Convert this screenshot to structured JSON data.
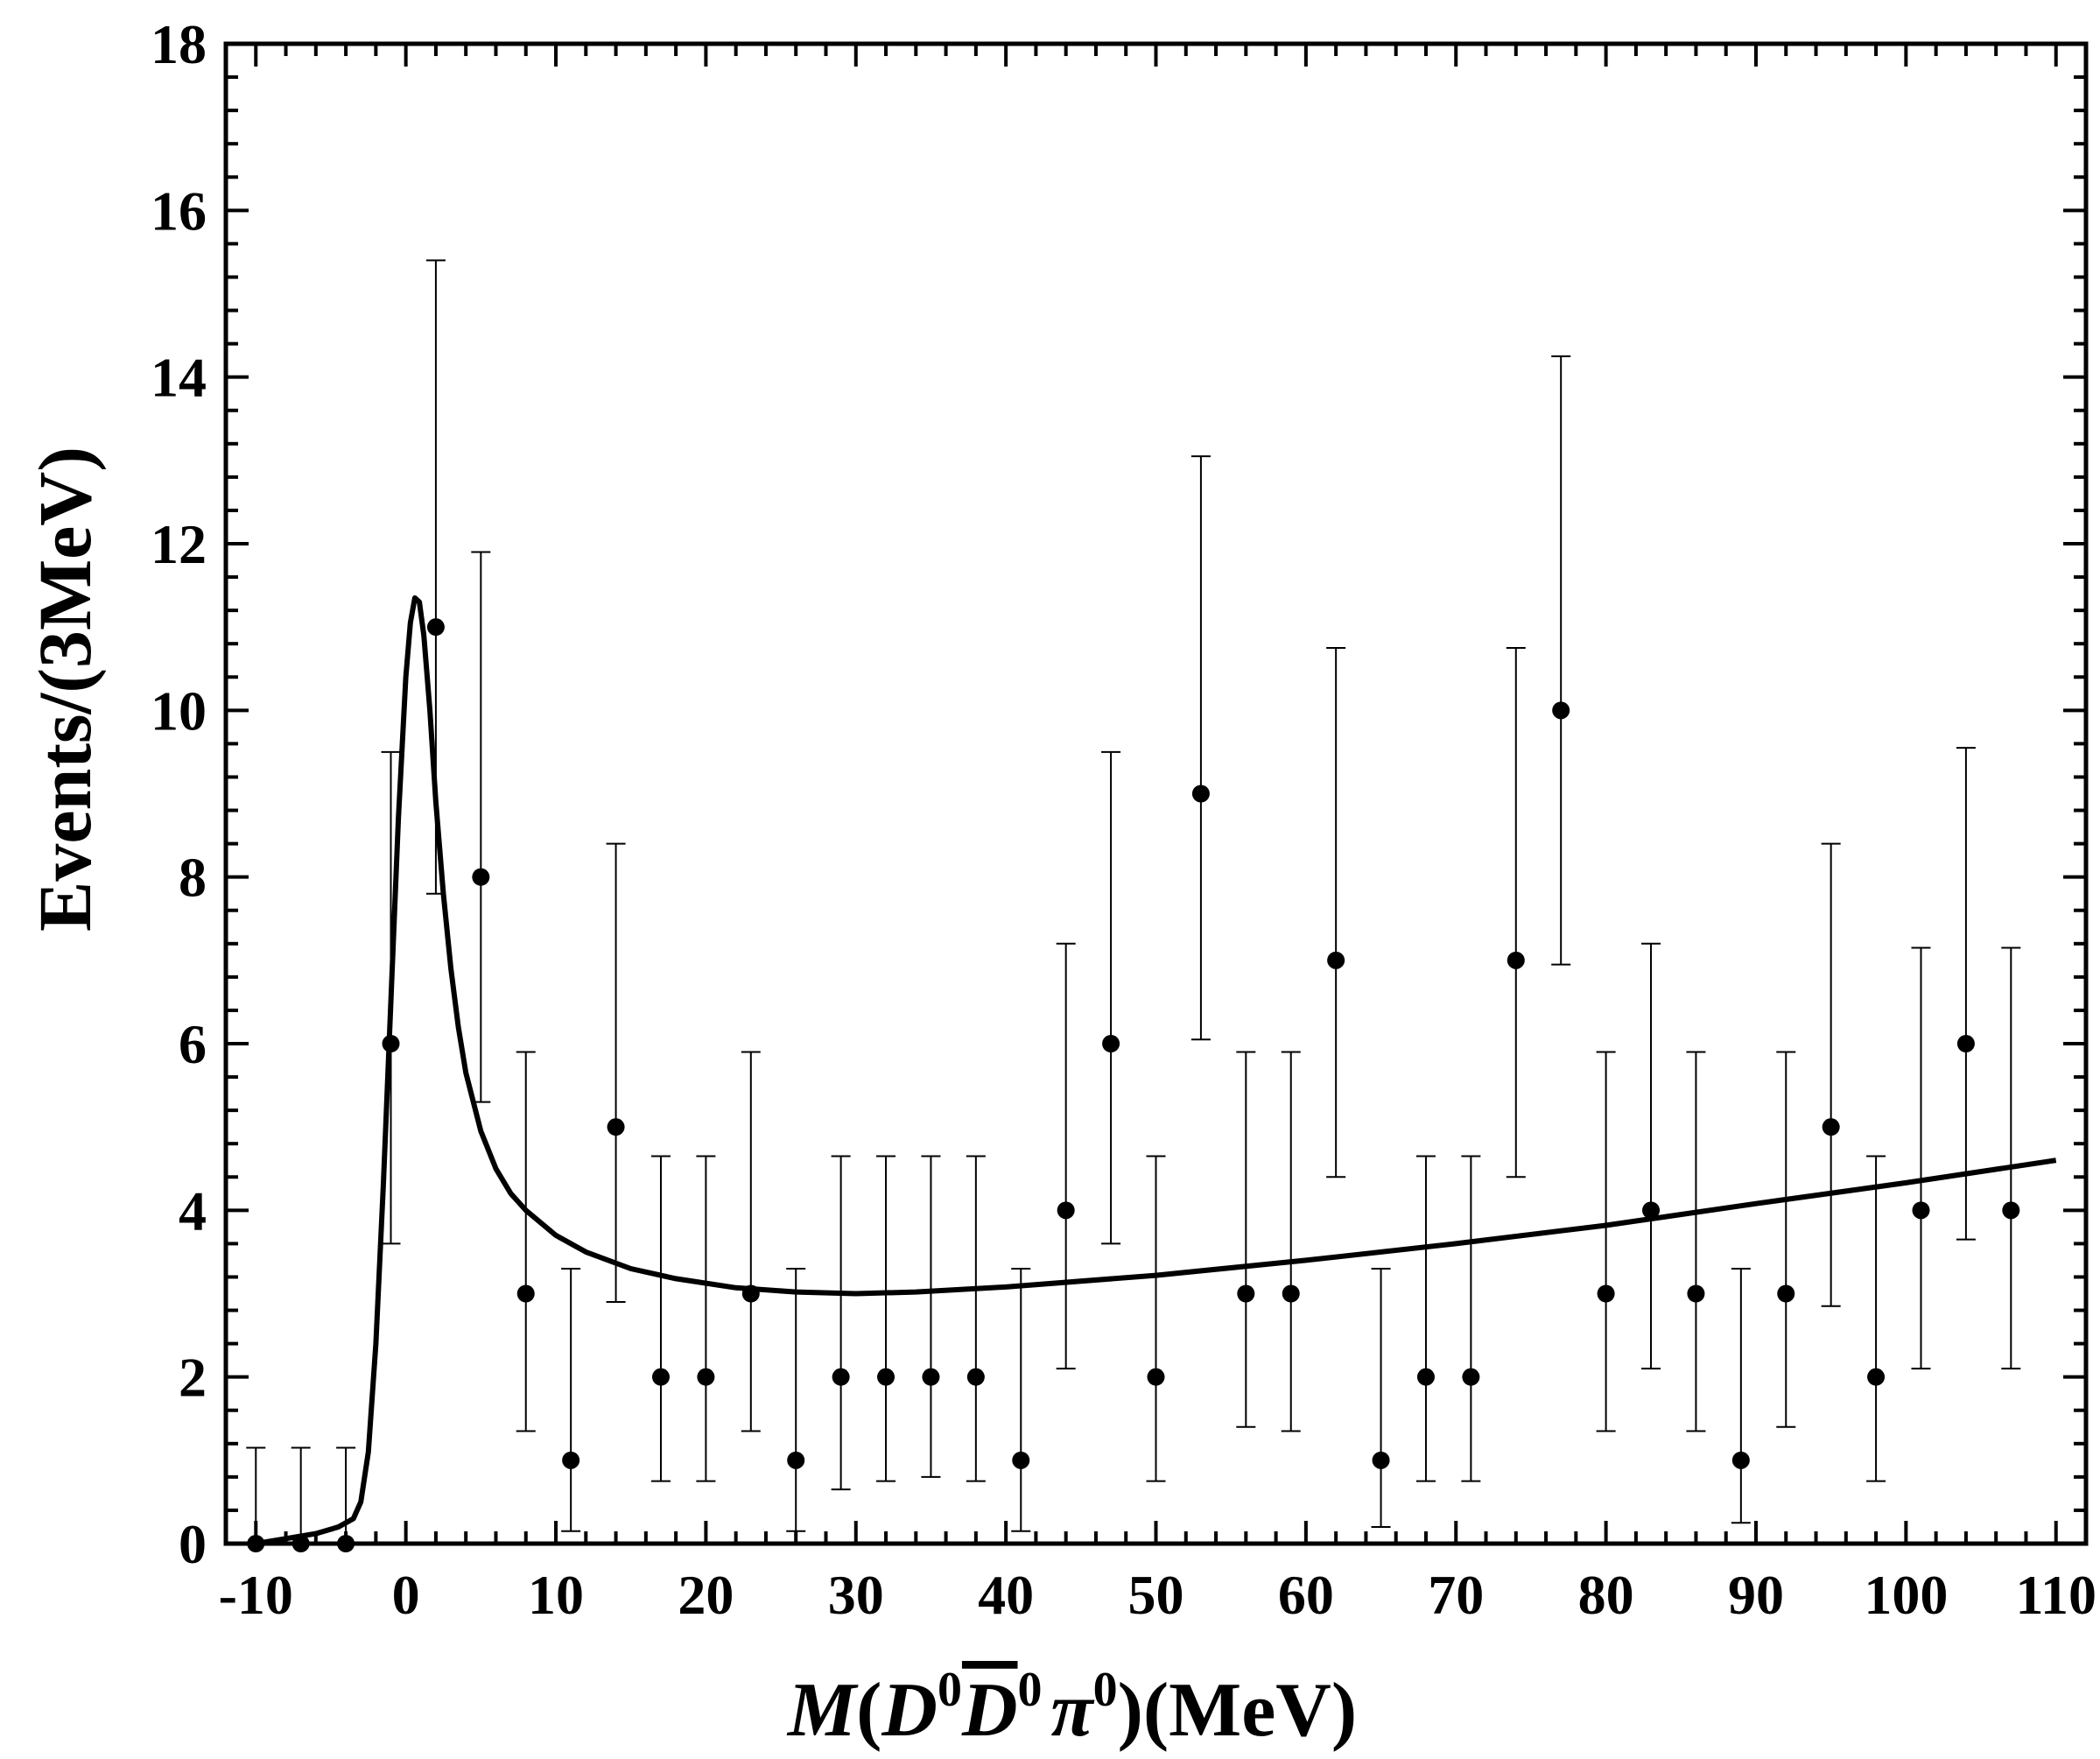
{
  "chart_data": {
    "type": "scatter",
    "title": "",
    "xlabel": {
      "prefix": "M",
      "open": "(",
      "d1": "D",
      "d1_sup": "0",
      "d2": "D",
      "d2_sup": "0",
      "pi": "π",
      "pi_sup": "0",
      "close": ")",
      "unit": "(MeV)"
    },
    "ylabel": "Events/(3MeV)",
    "xlim": [
      -12,
      112
    ],
    "ylim": [
      0,
      18
    ],
    "x_ticks": [
      -10,
      0,
      10,
      20,
      30,
      40,
      50,
      60,
      70,
      80,
      90,
      100,
      110
    ],
    "y_ticks": [
      0,
      2,
      4,
      6,
      8,
      10,
      12,
      14,
      16,
      18
    ],
    "grid": false,
    "legend": "none",
    "series": [
      {
        "type": "points_with_errors",
        "color": "#000000",
        "points": [
          {
            "x": -10,
            "y": 0,
            "lo": 0,
            "hi": 1.15
          },
          {
            "x": -7,
            "y": 0,
            "lo": 0,
            "hi": 1.15
          },
          {
            "x": -4,
            "y": 0,
            "lo": 0,
            "hi": 1.15
          },
          {
            "x": -1,
            "y": 6,
            "lo": 3.6,
            "hi": 9.5
          },
          {
            "x": 2,
            "y": 11,
            "lo": 7.8,
            "hi": 15.4
          },
          {
            "x": 5,
            "y": 8,
            "lo": 5.3,
            "hi": 11.9
          },
          {
            "x": 8,
            "y": 3,
            "lo": 1.35,
            "hi": 5.9
          },
          {
            "x": 11,
            "y": 1,
            "lo": 0.15,
            "hi": 3.3
          },
          {
            "x": 14,
            "y": 5,
            "lo": 2.9,
            "hi": 8.4
          },
          {
            "x": 17,
            "y": 2,
            "lo": 0.75,
            "hi": 4.65
          },
          {
            "x": 20,
            "y": 2,
            "lo": 0.75,
            "hi": 4.65
          },
          {
            "x": 23,
            "y": 3,
            "lo": 1.35,
            "hi": 5.9
          },
          {
            "x": 26,
            "y": 1,
            "lo": 0.15,
            "hi": 3.3
          },
          {
            "x": 29,
            "y": 2,
            "lo": 0.65,
            "hi": 4.65
          },
          {
            "x": 32,
            "y": 2,
            "lo": 0.75,
            "hi": 4.65
          },
          {
            "x": 35,
            "y": 2,
            "lo": 0.8,
            "hi": 4.65
          },
          {
            "x": 38,
            "y": 2,
            "lo": 0.75,
            "hi": 4.65
          },
          {
            "x": 41,
            "y": 1,
            "lo": 0.15,
            "hi": 3.3
          },
          {
            "x": 44,
            "y": 4,
            "lo": 2.1,
            "hi": 7.2
          },
          {
            "x": 47,
            "y": 6,
            "lo": 3.6,
            "hi": 9.5
          },
          {
            "x": 50,
            "y": 2,
            "lo": 0.75,
            "hi": 4.65
          },
          {
            "x": 53,
            "y": 9,
            "lo": 6.05,
            "hi": 13.05
          },
          {
            "x": 56,
            "y": 3,
            "lo": 1.4,
            "hi": 5.9
          },
          {
            "x": 59,
            "y": 3,
            "lo": 1.35,
            "hi": 5.9
          },
          {
            "x": 62,
            "y": 7,
            "lo": 4.4,
            "hi": 10.75
          },
          {
            "x": 65,
            "y": 1,
            "lo": 0.2,
            "hi": 3.3
          },
          {
            "x": 68,
            "y": 2,
            "lo": 0.75,
            "hi": 4.65
          },
          {
            "x": 71,
            "y": 2,
            "lo": 0.75,
            "hi": 4.65
          },
          {
            "x": 74,
            "y": 7,
            "lo": 4.4,
            "hi": 10.75
          },
          {
            "x": 77,
            "y": 10,
            "lo": 6.95,
            "hi": 14.25
          },
          {
            "x": 80,
            "y": 3,
            "lo": 1.35,
            "hi": 5.9
          },
          {
            "x": 83,
            "y": 4,
            "lo": 2.1,
            "hi": 7.2
          },
          {
            "x": 86,
            "y": 3,
            "lo": 1.35,
            "hi": 5.9
          },
          {
            "x": 89,
            "y": 1,
            "lo": 0.25,
            "hi": 3.3
          },
          {
            "x": 92,
            "y": 3,
            "lo": 1.4,
            "hi": 5.9
          },
          {
            "x": 95,
            "y": 5,
            "lo": 2.85,
            "hi": 8.4
          },
          {
            "x": 98,
            "y": 2,
            "lo": 0.75,
            "hi": 4.65
          },
          {
            "x": 101,
            "y": 4,
            "lo": 2.1,
            "hi": 7.15
          },
          {
            "x": 104,
            "y": 6,
            "lo": 3.65,
            "hi": 9.55
          },
          {
            "x": 107,
            "y": 4,
            "lo": 2.1,
            "hi": 7.15
          }
        ]
      },
      {
        "type": "line",
        "color": "#000000",
        "x": [
          -10,
          -8,
          -6,
          -4.5,
          -3.5,
          -3,
          -2.5,
          -2,
          -1.5,
          -1,
          -0.5,
          0,
          0.3,
          0.6,
          0.9,
          1.2,
          1.6,
          2,
          2.5,
          3,
          3.5,
          4,
          5,
          6,
          7,
          8,
          10,
          12,
          15,
          18,
          22,
          26,
          30,
          34,
          40,
          50,
          60,
          70,
          80,
          90,
          100,
          110
        ],
        "y": [
          0,
          0.06,
          0.12,
          0.2,
          0.3,
          0.5,
          1.1,
          2.4,
          4.3,
          6.5,
          8.7,
          10.4,
          11.05,
          11.35,
          11.3,
          10.9,
          10.0,
          8.9,
          7.8,
          6.9,
          6.2,
          5.65,
          4.95,
          4.5,
          4.2,
          4.0,
          3.7,
          3.5,
          3.3,
          3.18,
          3.07,
          3.02,
          3.0,
          3.02,
          3.08,
          3.22,
          3.4,
          3.6,
          3.82,
          4.08,
          4.33,
          4.6
        ]
      }
    ]
  }
}
